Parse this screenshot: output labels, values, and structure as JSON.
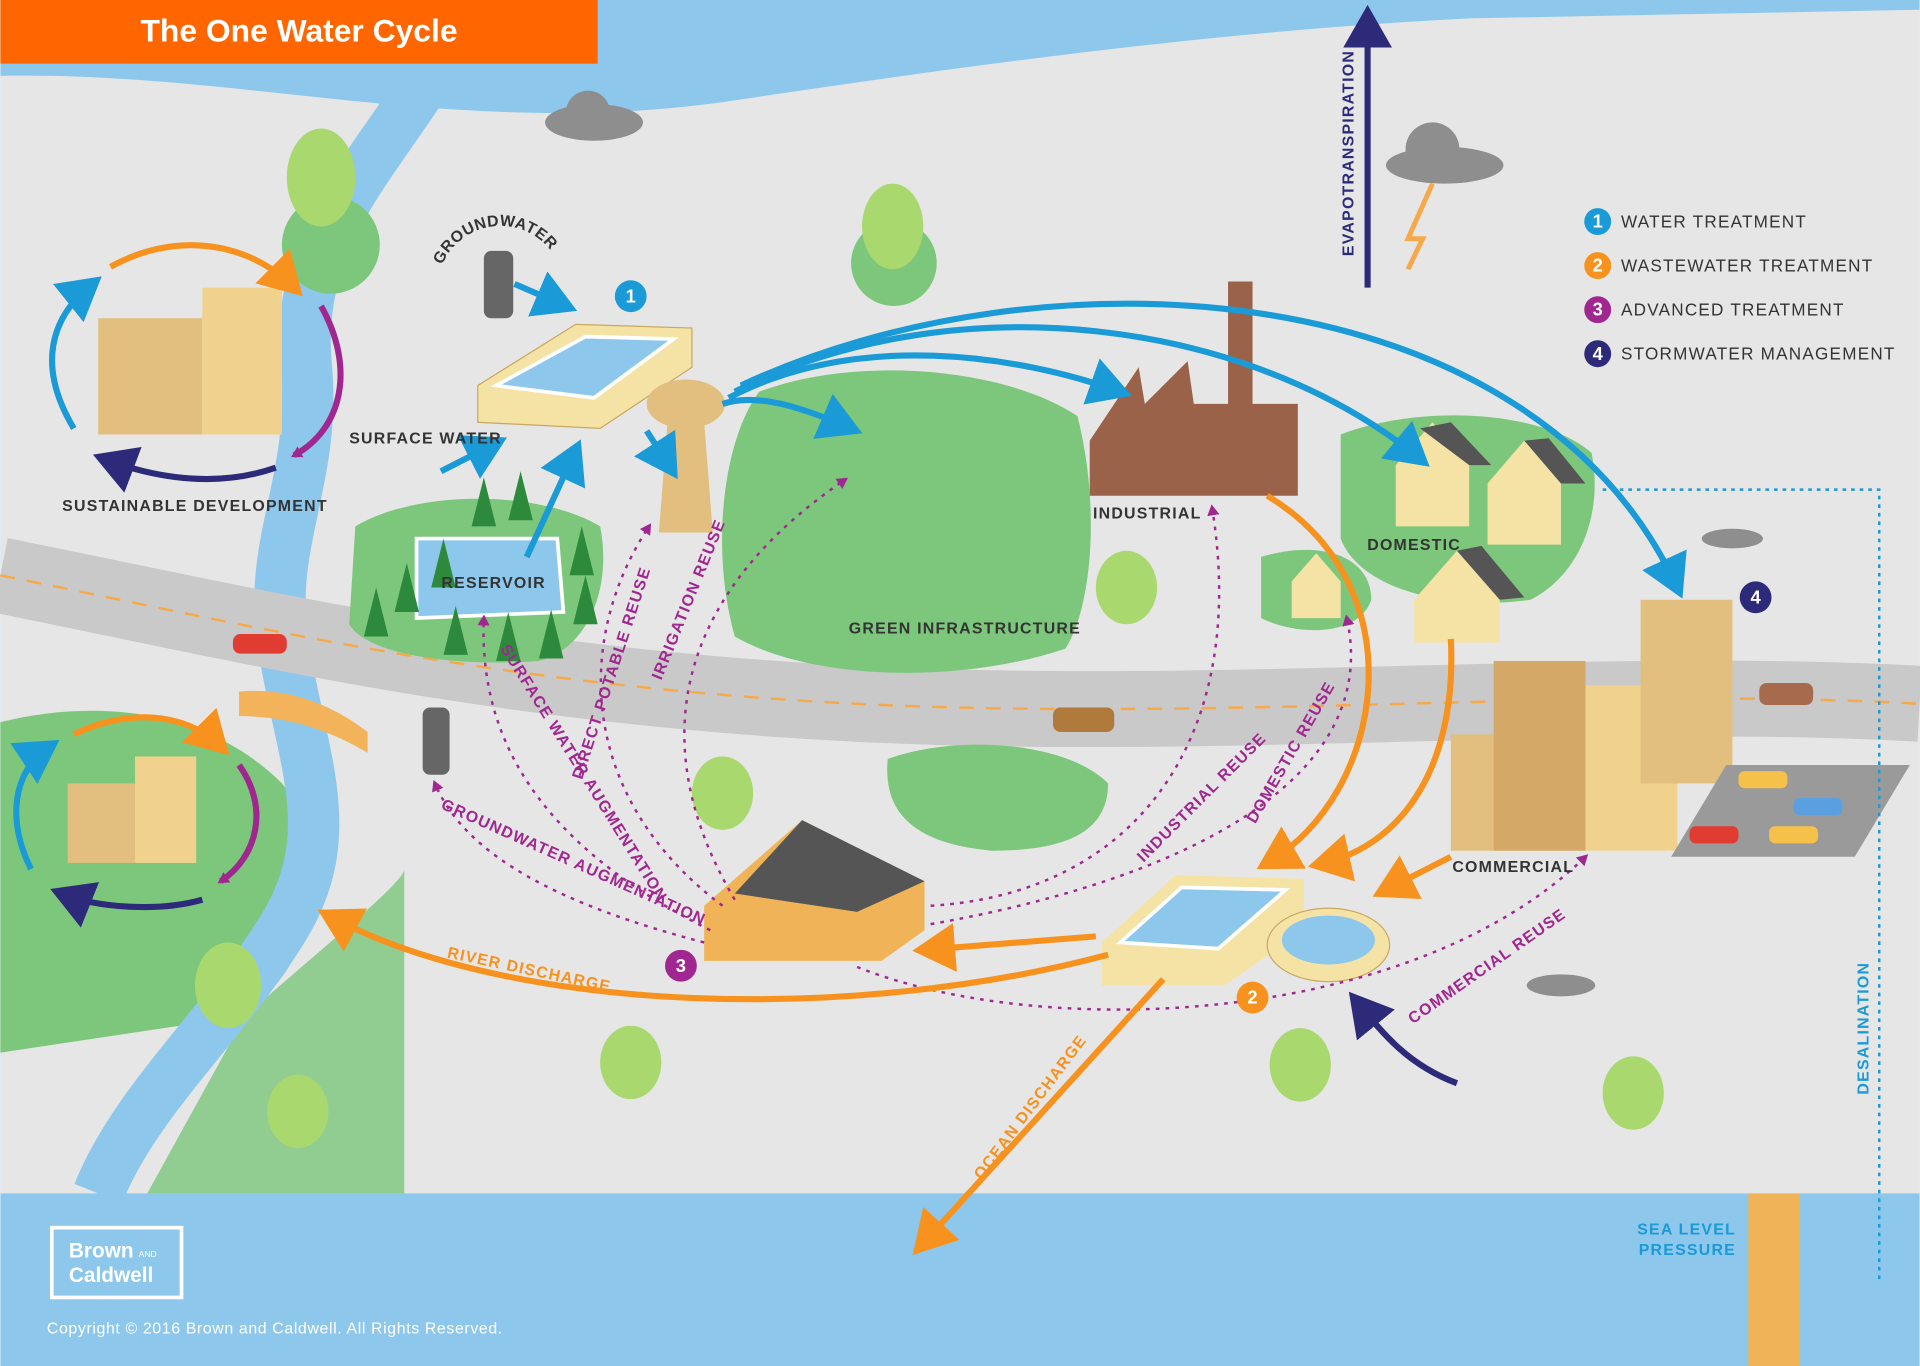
{
  "header": {
    "title": "The One Water Cycle"
  },
  "legend": {
    "items": [
      {
        "number": "1",
        "label": "WATER TREATMENT"
      },
      {
        "number": "2",
        "label": "WASTEWATER TREATMENT"
      },
      {
        "number": "3",
        "label": "ADVANCED TREATMENT"
      },
      {
        "number": "4",
        "label": "STORMWATER MANAGEMENT"
      }
    ]
  },
  "places": {
    "groundwater": "GROUNDWATER",
    "surface_water": "SURFACE WATER",
    "sustainable_development": "SUSTAINABLE DEVELOPMENT",
    "reservoir": "RESERVOIR",
    "green_infrastructure": "GREEN INFRASTRUCTURE",
    "industrial": "INDUSTRIAL",
    "domestic": "DOMESTIC",
    "commercial": "COMMERCIAL",
    "evapotranspiration": "EVAPOTRANSPIRATION",
    "desalination": "DESALINATION",
    "sea_level_pressure": [
      "SEA LEVEL",
      "PRESSURE"
    ]
  },
  "flows": {
    "direct_potable_reuse": "DIRECT POTABLE REUSE",
    "irrigation_reuse": "IRRIGATION REUSE",
    "surface_water_augmentation": "SURFACE WATER AUGMENTATION",
    "groundwater_augmentation": "GROUNDWATER AUGMENTATION",
    "river_discharge": "RIVER DISCHARGE",
    "ocean_discharge": "OCEAN DISCHARGE",
    "industrial_reuse": "INDUSTRIAL REUSE",
    "domestic_reuse": "DOMESTIC REUSE",
    "commercial_reuse": "COMMERCIAL REUSE"
  },
  "logo": {
    "line1": "Brown",
    "and": "AND",
    "line2": "Caldwell"
  },
  "footer": {
    "copyright": "Copyright © 2016 Brown and Caldwell.  All Rights Reserved."
  }
}
